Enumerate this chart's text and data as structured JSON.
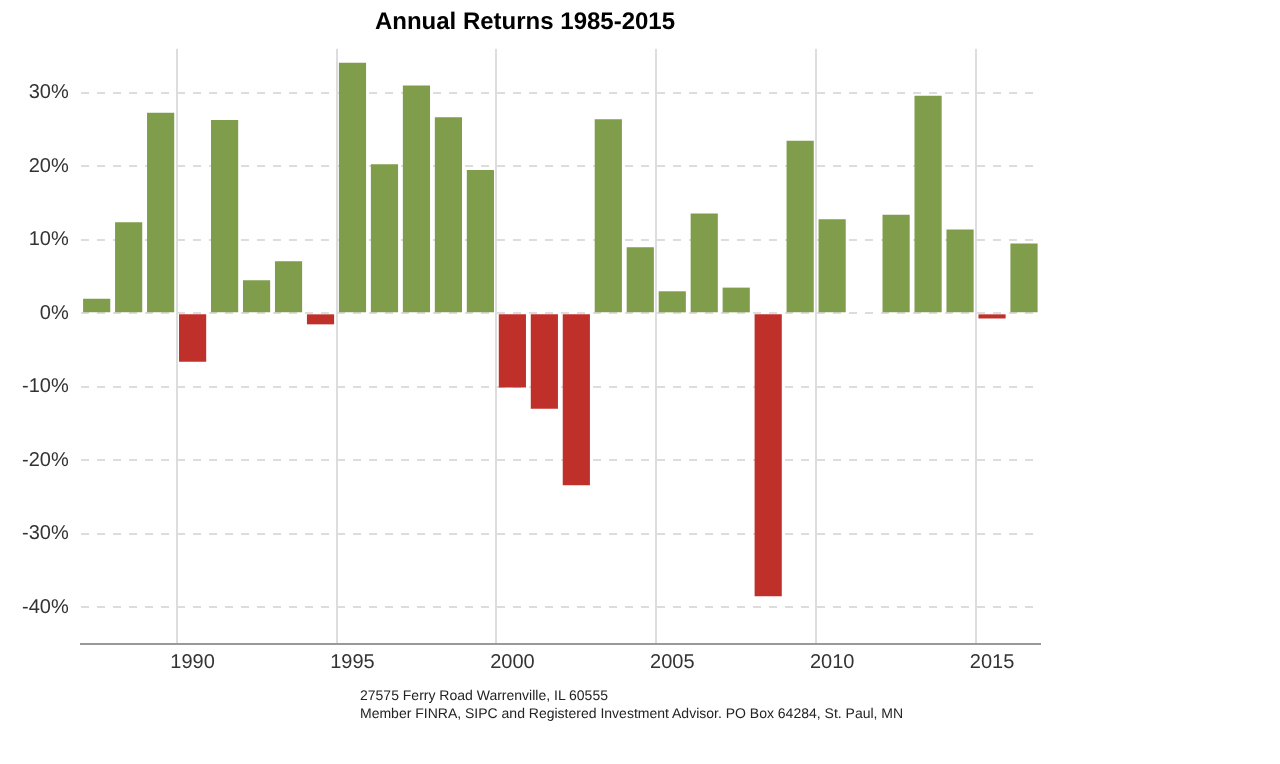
{
  "chart_data": {
    "type": "bar",
    "title": "Annual Returns 1985-2015",
    "categories": [
      null,
      null,
      null,
      "1990",
      null,
      null,
      null,
      null,
      "1995",
      null,
      null,
      null,
      null,
      "2000",
      null,
      null,
      null,
      null,
      "2005",
      null,
      null,
      null,
      null,
      "2010",
      null,
      null,
      null,
      null,
      "2015",
      null
    ],
    "values": [
      2.0,
      12.4,
      27.3,
      -6.6,
      26.3,
      4.5,
      7.1,
      -1.5,
      34.1,
      20.3,
      31.0,
      26.7,
      19.5,
      -10.1,
      -13.0,
      -23.4,
      26.4,
      9.0,
      3.0,
      13.6,
      3.5,
      -38.5,
      23.5,
      12.8,
      0.0,
      13.4,
      29.6,
      11.4,
      -0.7,
      9.5
    ],
    "colors": [
      "#7f9d4b",
      "#7f9d4b",
      "#7f9d4b",
      "#c0302b",
      "#7f9d4b",
      "#7f9d4b",
      "#7f9d4b",
      "#c0302b",
      "#7f9d4b",
      "#7f9d4b",
      "#7f9d4b",
      "#7f9d4b",
      "#7f9d4b",
      "#c0302b",
      "#c0302b",
      "#c0302b",
      "#7f9d4b",
      "#7f9d4b",
      "#7f9d4b",
      "#7f9d4b",
      "#7f9d4b",
      "#c0302b",
      "#7f9d4b",
      "#7f9d4b",
      "#7f9d4b",
      "#7f9d4b",
      "#7f9d4b",
      "#7f9d4b",
      "#c0302b",
      "#7f9d4b"
    ],
    "ylim": [
      -45,
      36
    ],
    "yticks": [
      {
        "value": -40,
        "label": "-40%"
      },
      {
        "value": -30,
        "label": "-30%"
      },
      {
        "value": -20,
        "label": "-20%"
      },
      {
        "value": -10,
        "label": "-10%"
      },
      {
        "value": 0,
        "label": "0%"
      },
      {
        "value": 10,
        "label": "10%"
      },
      {
        "value": 20,
        "label": "20%"
      },
      {
        "value": 30,
        "label": "30%"
      }
    ],
    "grid": true,
    "legend": false,
    "annotations": [
      "27575 Ferry Road Warrenville, IL 60555",
      "Member FINRA, SIPC and Registered Investment Advisor.  PO Box 64284, St. Paul, MN"
    ]
  }
}
